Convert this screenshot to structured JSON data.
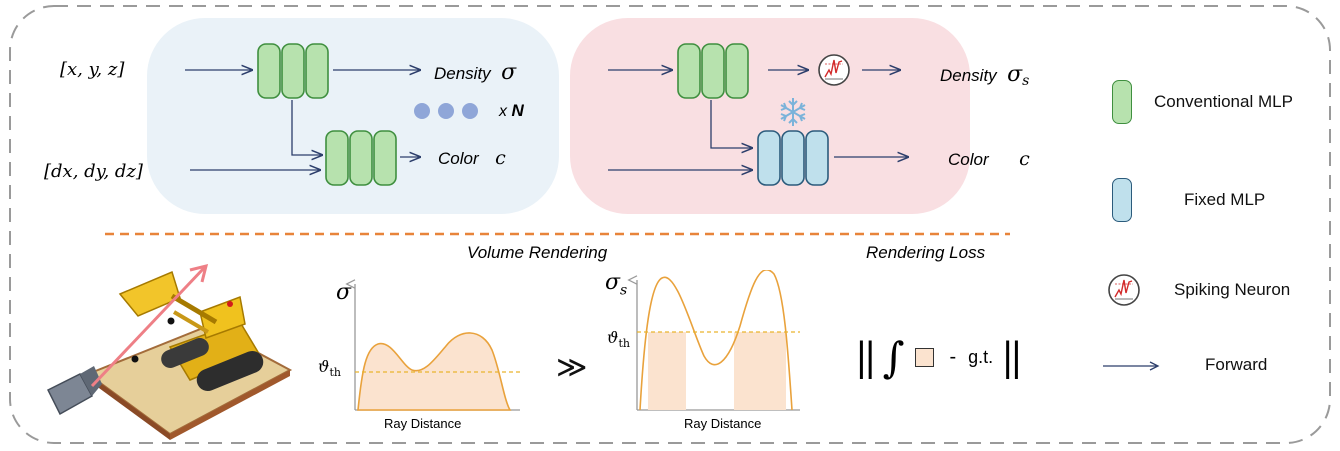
{
  "encoder": {
    "input_position": "[x, y, z]",
    "input_direction": "[dx, dy, dz]",
    "density_label": "Density",
    "density_symbol": "σ",
    "color_label": "Color",
    "color_symbol": "c",
    "repeat_label": "x",
    "repeat_symbol": "N"
  },
  "spiking_branch": {
    "density_label": "Density",
    "density_symbol": "σ",
    "density_subscript": "s",
    "color_label": "Color",
    "color_symbol": "c"
  },
  "section_titles": {
    "volume_rendering": "Volume Rendering",
    "rendering_loss": "Rendering Loss"
  },
  "plots": {
    "left": {
      "y_symbol": "σ",
      "threshold_label": "ϑ",
      "threshold_sub": "th",
      "x_label": "Ray Distance"
    },
    "right": {
      "y_symbol": "σ",
      "y_sub": "s",
      "threshold_label": "ϑ",
      "threshold_sub": "th",
      "x_label": "Ray Distance"
    },
    "arrow_symbol": "≫"
  },
  "loss": {
    "minus": "-",
    "gt": "g.t."
  },
  "legend": {
    "items": [
      {
        "label": "Conventional MLP",
        "icon": "conventional-mlp-icon",
        "color": "#b7e2ae"
      },
      {
        "label": "Fixed MLP",
        "icon": "fixed-mlp-icon",
        "color": "#bfe0ec"
      },
      {
        "label": "Spiking Neuron",
        "icon": "spiking-neuron-icon",
        "color": "#d22b2b"
      },
      {
        "label": "Forward",
        "icon": "forward-arrow-icon",
        "color": "#2c3e6b"
      }
    ]
  },
  "colors": {
    "conventional_panel": "#eaf2f8",
    "spiking_panel": "#f9dfe2",
    "mlp_green": "#b7e2ae",
    "mlp_green_border": "#3f8f3f",
    "mlp_blue": "#bfe0ec",
    "mlp_blue_border": "#2b5b7c",
    "arrow": "#2c3e6b",
    "divider": "#e8843a",
    "curve_fill": "#fbe3cf",
    "curve_stroke": "#e9a23c"
  }
}
